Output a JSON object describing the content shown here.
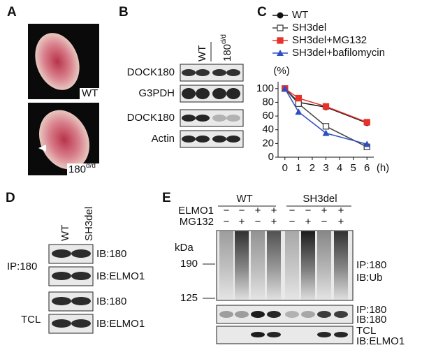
{
  "panels": {
    "a": "A",
    "b": "B",
    "c": "C",
    "d": "D",
    "e": "E"
  },
  "panel_a": {
    "labels": [
      "WT",
      {
        "base": "180",
        "sup": "d/d"
      }
    ]
  },
  "panel_b": {
    "columns": [
      "WT",
      {
        "base": "180",
        "sup": "d/d"
      }
    ],
    "rows": [
      "DOCK180",
      "G3PDH",
      "DOCK180",
      "Actin"
    ]
  },
  "chart_data": {
    "type": "line",
    "x": [
      0,
      1,
      3,
      6
    ],
    "xlim": [
      -0.5,
      6.5
    ],
    "xticks": [
      0,
      1,
      2,
      3,
      4,
      5,
      6
    ],
    "ylim": [
      0,
      110
    ],
    "yticks": [
      0,
      20,
      40,
      60,
      80,
      100
    ],
    "xlabel": "(h)",
    "ylabel": "(%)",
    "series": [
      {
        "name": "WT",
        "color": "#111111",
        "marker": "circle",
        "values": [
          100,
          80,
          73,
          50
        ]
      },
      {
        "name": "SH3del",
        "color": "#444444",
        "marker": "open-square",
        "values": [
          100,
          78,
          45,
          15
        ]
      },
      {
        "name": "SH3del+MG132",
        "color": "#e8312a",
        "marker": "square",
        "values": [
          100,
          86,
          74,
          51
        ]
      },
      {
        "name": "SH3del+bafilomycin",
        "color": "#2d4fc4",
        "marker": "triangle",
        "values": [
          100,
          66,
          35,
          19
        ]
      }
    ]
  },
  "panel_d": {
    "columns": [
      "WT",
      "SH3del"
    ],
    "groups": [
      "IP:180",
      "TCL"
    ],
    "blots": [
      "IB:180",
      "IB:ELMO1",
      "IB:180",
      "IB:ELMO1"
    ]
  },
  "panel_e": {
    "groups": [
      "WT",
      "SH3del"
    ],
    "rows": [
      {
        "name": "ELMO1",
        "signs": [
          "−",
          "−",
          "+",
          "+",
          "−",
          "−",
          "+",
          "+"
        ]
      },
      {
        "name": "MG132",
        "signs": [
          "−",
          "+",
          "−",
          "+",
          "−",
          "+",
          "−",
          "+"
        ]
      }
    ],
    "unit": "kDa",
    "markers": [
      190,
      125
    ],
    "blots": [
      [
        "IP:180",
        "IB:Ub"
      ],
      [
        "IP:180",
        "IB:180"
      ],
      [
        "TCL",
        "IB:ELMO1"
      ]
    ]
  }
}
